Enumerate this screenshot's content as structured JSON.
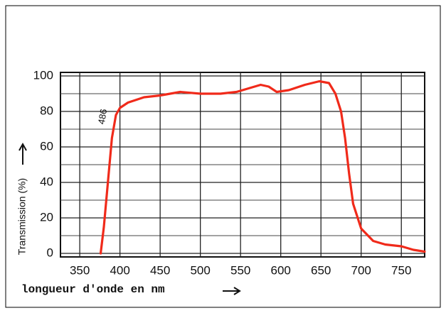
{
  "chart_data": {
    "type": "line",
    "xlabel": "longueur d'onde en nm",
    "ylabel": "Transmission (%)",
    "annotation": "486",
    "x": [
      376,
      380,
      385,
      390,
      395,
      400,
      410,
      430,
      450,
      475,
      500,
      525,
      545,
      560,
      575,
      585,
      595,
      610,
      630,
      648,
      660,
      668,
      675,
      680,
      685,
      690,
      700,
      715,
      730,
      750,
      765,
      779
    ],
    "series": [
      {
        "name": "Transmission",
        "color": "#f02a1a",
        "values": [
          0,
          15,
          40,
          65,
          78,
          82,
          85,
          88,
          89,
          91,
          90,
          90,
          91,
          93,
          95,
          94,
          91,
          92,
          95,
          97,
          96,
          90,
          80,
          65,
          45,
          28,
          14,
          7,
          5,
          4,
          2,
          1
        ]
      }
    ],
    "xlim": [
      326,
      779
    ],
    "xticks": [
      350,
      400,
      450,
      500,
      550,
      600,
      650,
      700,
      750
    ],
    "ylim": [
      -2,
      102
    ],
    "yticks": [
      0,
      20,
      40,
      60,
      80,
      100
    ],
    "minor_yticks": [
      10,
      30,
      50,
      70,
      90
    ],
    "grid": true
  }
}
